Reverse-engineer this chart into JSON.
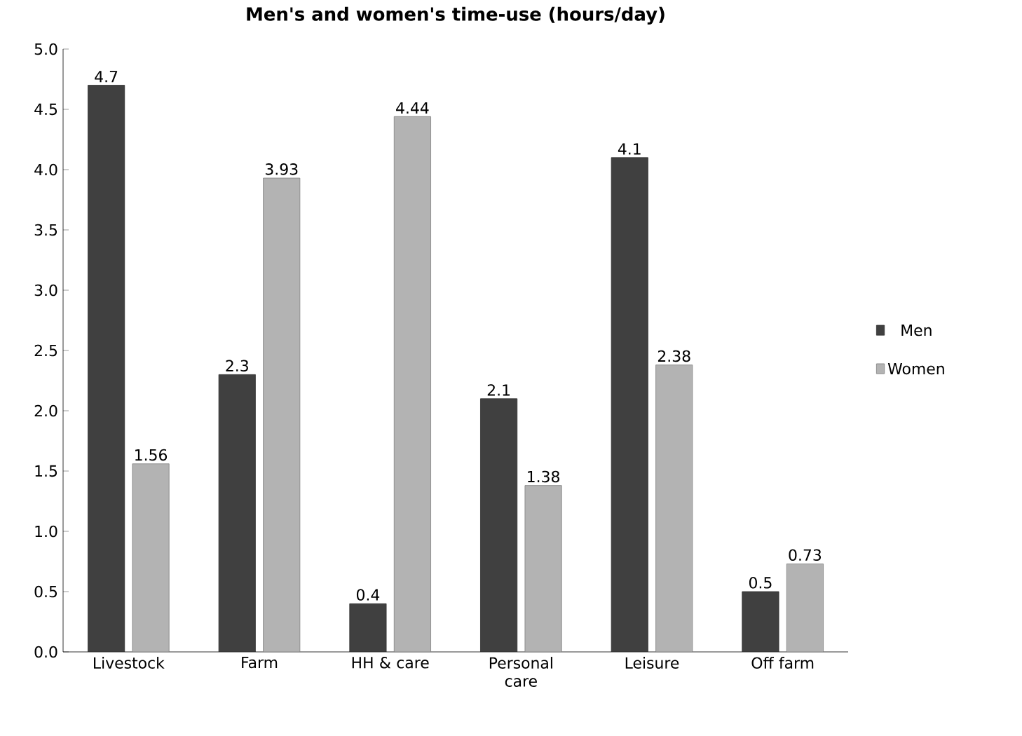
{
  "chart_data": {
    "type": "bar",
    "title": "Men's and women's time-use (hours/day)",
    "categories": [
      "Livestock",
      "Farm",
      "HH & care",
      "Personal care",
      "Leisure",
      "Off farm"
    ],
    "series": [
      {
        "name": "Men",
        "color": "#404040",
        "values": [
          4.7,
          2.3,
          0.4,
          2.1,
          4.1,
          0.5
        ]
      },
      {
        "name": "Women",
        "color": "#b3b3b3",
        "values": [
          1.56,
          3.93,
          4.44,
          1.38,
          2.38,
          0.73
        ]
      }
    ],
    "ylim": [
      0,
      5
    ],
    "yticks": [
      {
        "value": 0,
        "label": "0.0"
      },
      {
        "value": 0.5,
        "label": "0.5"
      },
      {
        "value": 1,
        "label": "1.0"
      },
      {
        "value": 1.5,
        "label": "1.5"
      },
      {
        "value": 2,
        "label": "2.0"
      },
      {
        "value": 2.5,
        "label": "2.5"
      },
      {
        "value": 3,
        "label": "3.0"
      },
      {
        "value": 3.5,
        "label": "3.5"
      },
      {
        "value": 4,
        "label": "4.0"
      },
      {
        "value": 4.5,
        "label": "4.5"
      },
      {
        "value": 5,
        "label": "5.0"
      }
    ],
    "data_labels": true,
    "legend": "right",
    "grid": false
  }
}
